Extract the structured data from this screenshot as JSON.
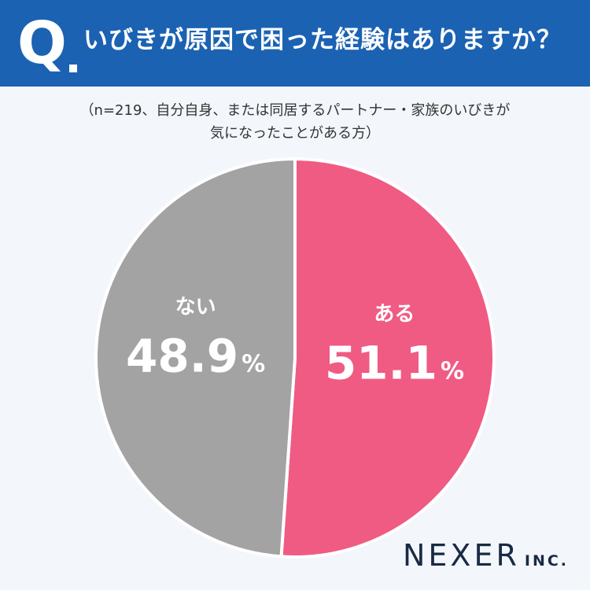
{
  "header": {
    "q_label": "Q",
    "question": "いびきが原因で困った経験はありますか？",
    "background_color": "#1b62b3"
  },
  "note": {
    "line1": "（n=219、自分自身、または同居するパートナー・家族のいびきが",
    "line2": "気になったことがある方）"
  },
  "chart_data": {
    "type": "pie",
    "title": "",
    "slices": [
      {
        "label": "ある",
        "value": 51.1,
        "display": "51.1",
        "unit": "%",
        "color": "#f05b83"
      },
      {
        "label": "ない",
        "value": 48.9,
        "display": "48.9",
        "unit": "%",
        "color": "#a3a3a3"
      }
    ],
    "start": "top, clockwise",
    "legend": "none (labels inside slices)"
  },
  "logo": {
    "main": "NEXER",
    "sub": "INC."
  }
}
